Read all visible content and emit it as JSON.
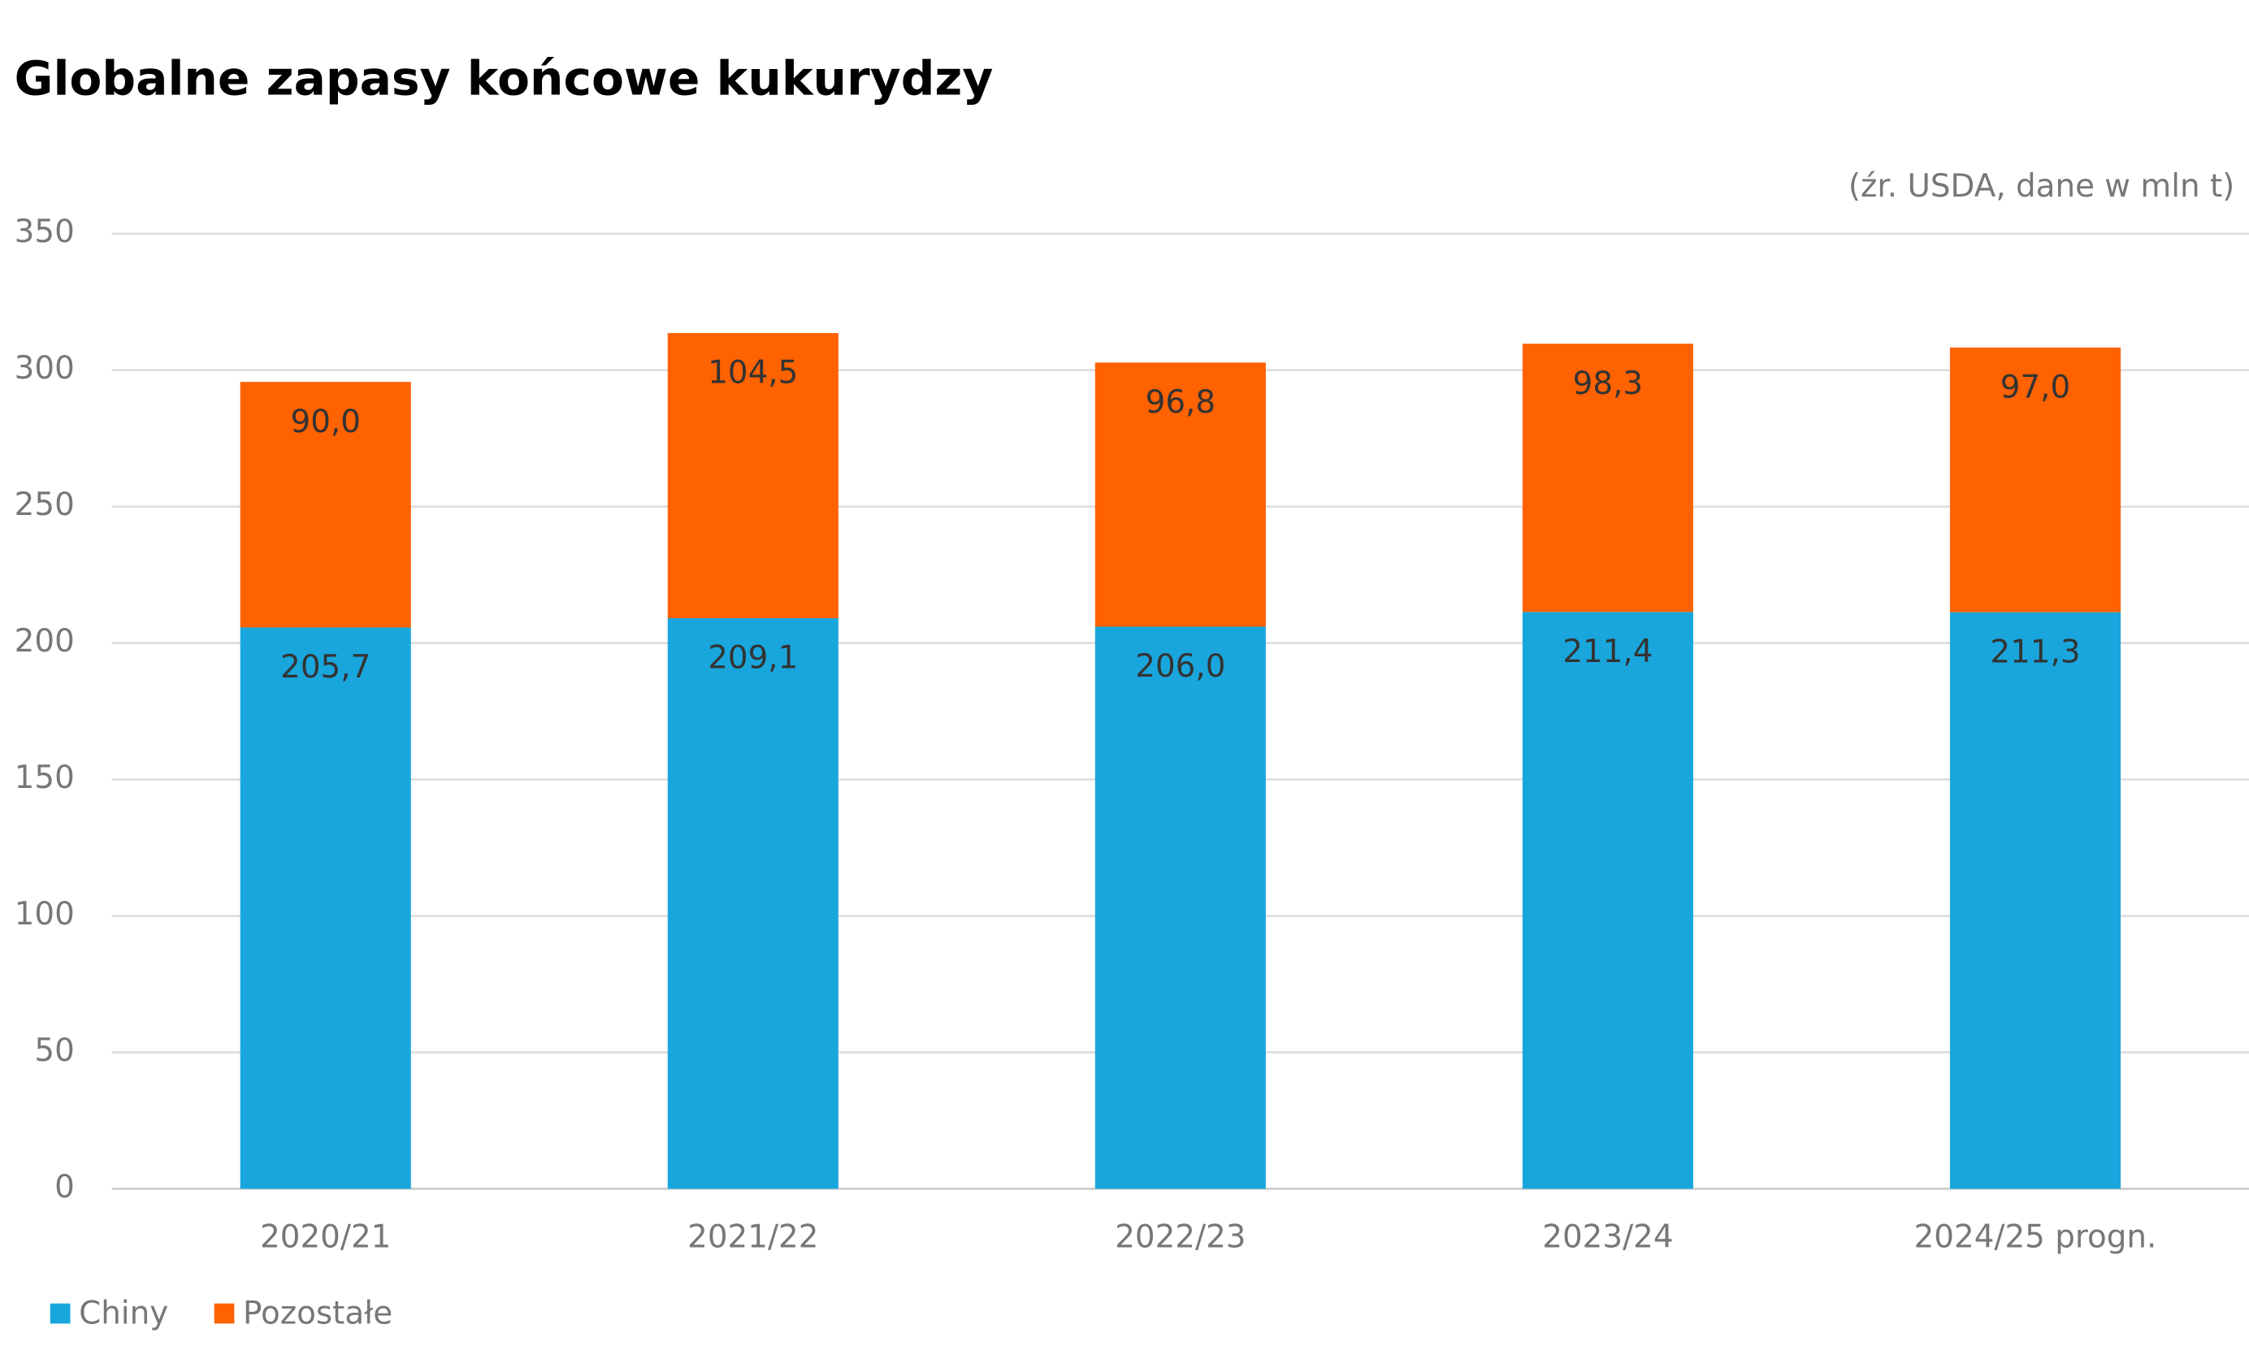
{
  "chart_data": {
    "type": "stacked_bar",
    "title": "Globalne zapasy końcowe kukurydzy",
    "subtitle": "(źr. USDA, dane w mln t)",
    "categories": [
      "2020/21",
      "2021/22",
      "2022/23",
      "2023/24",
      "2024/25 progn."
    ],
    "series": [
      {
        "name": "Chiny",
        "color": "#19a6dc",
        "values": [
          205.7,
          209.1,
          206.0,
          211.4,
          211.3
        ],
        "value_labels": [
          "205,7",
          "209,1",
          "206,0",
          "211,4",
          "211,3"
        ]
      },
      {
        "name": "Pozostałe",
        "color": "#ff6200",
        "values": [
          90.0,
          104.5,
          96.8,
          98.3,
          97.0
        ],
        "value_labels": [
          "90,0",
          "104,5",
          "96,8",
          "98,3",
          "97,0"
        ]
      }
    ],
    "ylim": [
      0,
      350
    ],
    "yticks": [
      0,
      50,
      100,
      150,
      200,
      250,
      300,
      350
    ],
    "grid": true,
    "legend": "bottom-left"
  }
}
